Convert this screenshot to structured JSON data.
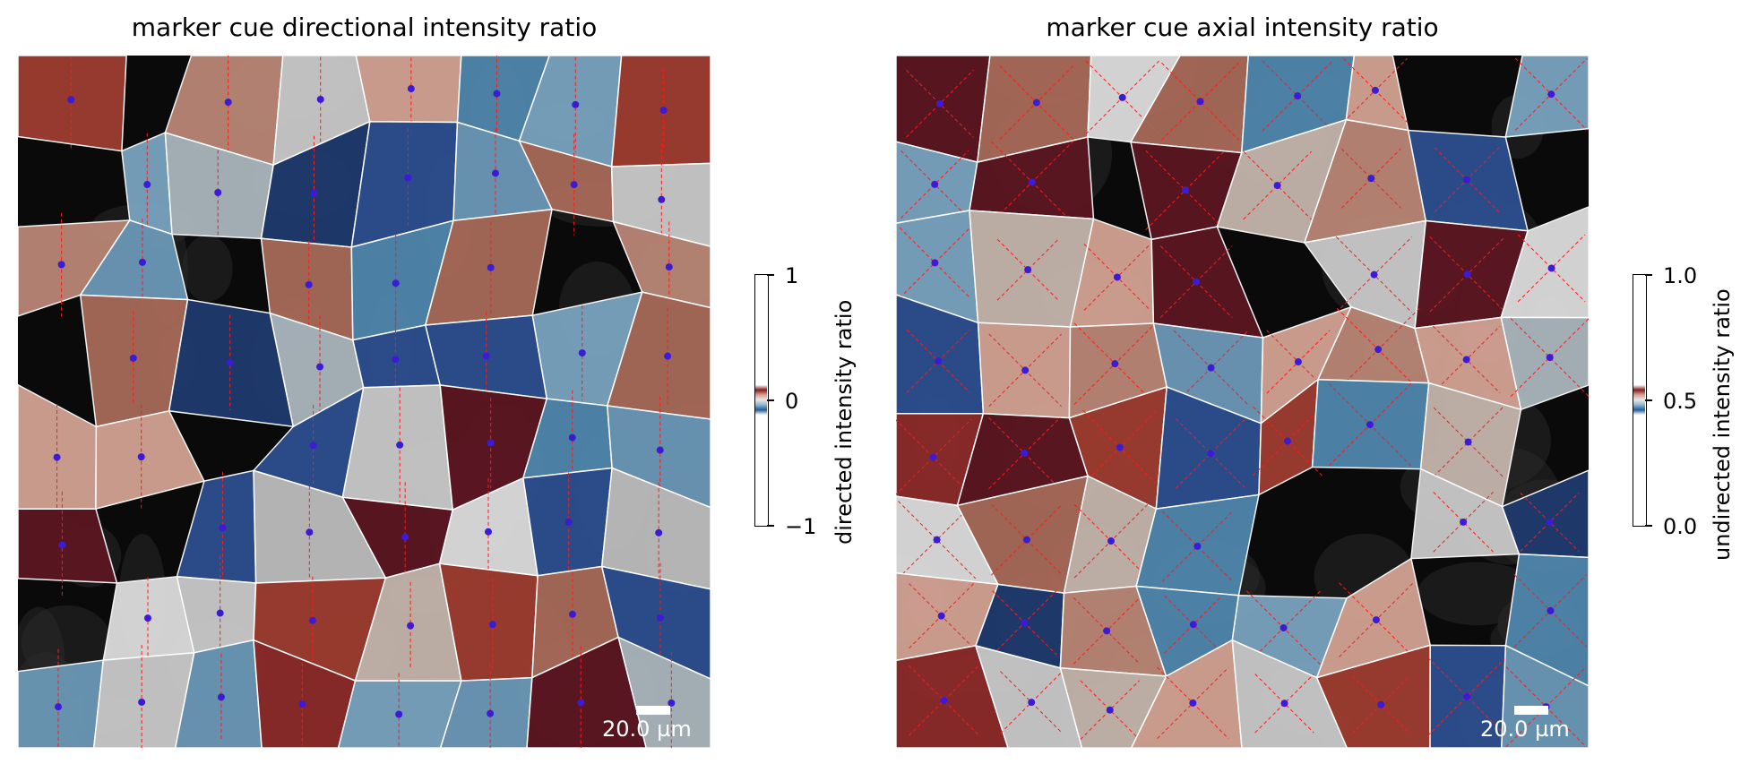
{
  "chart_data": [
    {
      "type": "heatmap",
      "title": "marker cue directional intensity ratio",
      "colorbar": {
        "label": "directed intensity ratio",
        "range": [
          -1,
          1
        ],
        "ticks": [
          {
            "value": 1,
            "label": "1"
          },
          {
            "value": 0,
            "label": "0"
          },
          {
            "value": -1,
            "label": "−1"
          }
        ],
        "colormap": "vanimo-like diverging (blue → white → red)"
      },
      "scale_bar": "20.0 µm",
      "overlay": {
        "centroid_marker_color": "#3b1bd6",
        "direction_lines": "vertical dashed red",
        "line_color": "#ff1a1a"
      }
    },
    {
      "type": "heatmap",
      "title": "marker cue axial intensity ratio",
      "colorbar": {
        "label": "undirected intensity ratio",
        "range": [
          0.0,
          1.0
        ],
        "ticks": [
          {
            "value": 1.0,
            "label": "1.0"
          },
          {
            "value": 0.5,
            "label": "0.5"
          },
          {
            "value": 0.0,
            "label": "0.0"
          }
        ],
        "colormap": "vanimo-like diverging (blue → white → red)"
      },
      "scale_bar": "20.0 µm",
      "overlay": {
        "centroid_marker_color": "#3b1bd6",
        "direction_lines": "diagonal dashed red (±45°)",
        "line_color": "#ff1a1a"
      }
    }
  ]
}
